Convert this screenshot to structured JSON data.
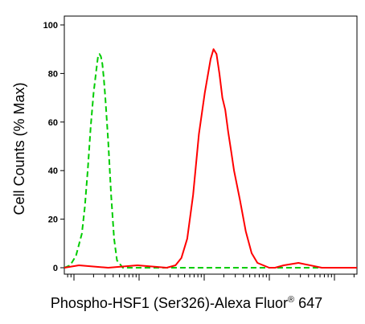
{
  "chart_data": {
    "type": "line",
    "title": "",
    "xlabel": "Phospho-HSF1 (Ser326)-Alexa Fluor",
    "xlabel_mark": "®",
    "xlabel_suffix": " 647",
    "ylabel": "Cell Counts (% Max)",
    "x_scale": "log",
    "x_tick_labels": [],
    "xlim": [
      0,
      1
    ],
    "ylim": [
      0,
      105
    ],
    "y_ticks": [
      0,
      20,
      40,
      60,
      80,
      100
    ],
    "y_tick_labels": [
      "0",
      "20",
      "40",
      "60",
      "80",
      "100"
    ],
    "grid": false,
    "legend": "none",
    "series": [
      {
        "color": "#00cc00",
        "style": "dashed",
        "x": [
          0.0,
          0.02,
          0.04,
          0.06,
          0.07,
          0.08,
          0.09,
          0.1,
          0.11,
          0.115,
          0.12,
          0.125,
          0.13,
          0.135,
          0.14,
          0.15,
          0.16,
          0.17,
          0.18,
          0.2,
          1.0
        ],
        "y": [
          0,
          1,
          5,
          14,
          25,
          40,
          58,
          72,
          82,
          87,
          88,
          87,
          84,
          78,
          70,
          52,
          30,
          12,
          3,
          0,
          0
        ]
      },
      {
        "color": "#ff0000",
        "style": "solid",
        "x": [
          0.0,
          0.05,
          0.15,
          0.25,
          0.35,
          0.38,
          0.4,
          0.42,
          0.44,
          0.46,
          0.48,
          0.5,
          0.51,
          0.52,
          0.53,
          0.54,
          0.55,
          0.56,
          0.57,
          0.58,
          0.6,
          0.62,
          0.64,
          0.66,
          0.68,
          0.7,
          0.72,
          0.75,
          0.8,
          0.88,
          1.0
        ],
        "y": [
          0,
          1,
          0,
          1,
          0,
          1,
          4,
          12,
          30,
          55,
          72,
          86,
          90,
          88,
          80,
          70,
          65,
          56,
          48,
          40,
          28,
          15,
          6,
          2,
          1,
          0,
          0,
          1,
          2,
          0,
          0
        ]
      }
    ]
  }
}
